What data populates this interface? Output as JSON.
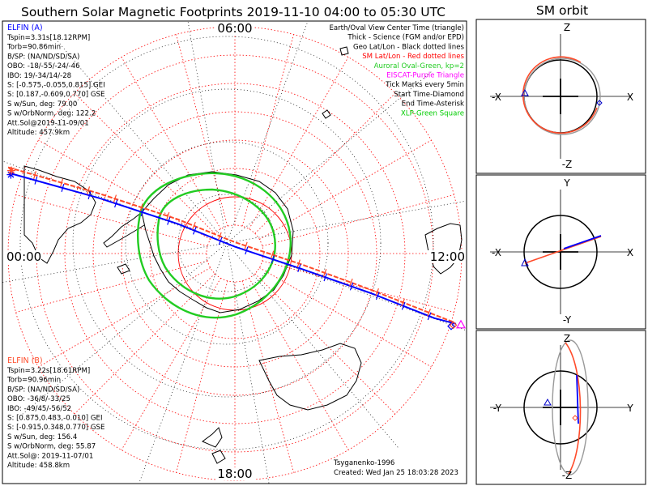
{
  "title": "Southern Solar Magnetic Footprints 2019-11-10 04:00 to 05:30 UTC",
  "orbit_title": "SM orbit",
  "colors": {
    "ela": "#0000ff",
    "elb": "#ff4b2a",
    "oval": "#22cc22",
    "sm_grid": "#ff0000",
    "geo_grid": "#000000",
    "eiscat": "#ff00ff",
    "xlp": "#00cc00",
    "orbit_grey": "#9a9a9a"
  },
  "legend": [
    {
      "text": "Earth/Oval View Center Time (triangle)",
      "color": "#000000"
    },
    {
      "text": "Thick - Science (FGM and/or EPD)",
      "color": "#000000"
    },
    {
      "text": "Geo Lat/Lon - Black dotted lines",
      "color": "#000000"
    },
    {
      "text": "SM Lat/Lon - Red dotted lines",
      "color": "#ff0000"
    },
    {
      "text": "Auroral Oval-Green, kp=2",
      "color": "#22cc22"
    },
    {
      "text": "EISCAT-Purple Triangle",
      "color": "#ff00ff"
    },
    {
      "text": "Tick Marks every 5min",
      "color": "#000000"
    },
    {
      "text": "Start Time-Diamond",
      "color": "#000000"
    },
    {
      "text": "End Time-Asterisk",
      "color": "#000000"
    },
    {
      "text": "XLP-Green Square",
      "color": "#00cc00"
    }
  ],
  "ela_info": {
    "name": "ELFIN (A)",
    "lines": [
      "Tspin=3.31s[18.12RPM]",
      "Torb=90.86min",
      "B/SP: (NA/ND/SD/SA)",
      "OBO: -18/-55/-24/-46",
      "IBO: 19/-34/14/-28",
      "S: [-0.575,-0.055,0.815] GEI",
      "S: [0.187,-0.609,0.770] GSE",
      "S w/Sun, deg: 79.00",
      "S w/OrbNorm, deg: 122.2",
      "Att.Sol@2019-11-09/01",
      "Altitude: 457.9km"
    ]
  },
  "elb_info": {
    "name": "ELFIN (B)",
    "lines": [
      "Tspin=3.22s[18.61RPM]",
      "Torb=90.96min",
      "B/SP: (NA/ND/SD/SA)",
      "OBO: -36/8/-33/25",
      "IBO: -49/45/-56/52",
      "S: [0.875,0.483,-0.010] GEI",
      "S: [-0.915,0.348,0.770] GSE",
      "S w/Sun, deg: 156.4",
      "S w/OrbNorm, deg: 55.87",
      "Att.Sol@: 2019-11-07/01",
      "Altitude: 458.8km"
    ]
  },
  "footer": {
    "author": "Tsyganenko-1996",
    "created": "Created: Wed Jan 25 18:03:28 2023"
  },
  "chart_data": [
    {
      "type": "line",
      "title": "Southern Solar Magnetic Footprints 2019-11-10 04:00 to 05:30 UTC",
      "mlt_labels": {
        "top": "06:00",
        "left": "00:00",
        "right": "12:00",
        "bottom": "18:00"
      },
      "series": [
        {
          "name": "ELFIN (A)",
          "color": "#0000ff",
          "points": [
            [
              -0.995,
              -0.355
            ],
            [
              -0.6,
              -0.245
            ],
            [
              -0.25,
              -0.13
            ],
            [
              0.0,
              -0.03
            ],
            [
              0.3,
              0.07
            ],
            [
              0.6,
              0.175
            ],
            [
              0.88,
              0.285
            ],
            [
              0.975,
              0.31
            ]
          ]
        },
        {
          "name": "ELFIN (B)",
          "color": "#ff4b2a",
          "points": [
            [
              -1.0,
              -0.38
            ],
            [
              -0.6,
              -0.265
            ],
            [
              -0.25,
              -0.15
            ],
            [
              0.0,
              -0.05
            ],
            [
              0.3,
              0.05
            ],
            [
              0.6,
              0.16
            ],
            [
              0.88,
              0.27
            ],
            [
              0.97,
              0.305
            ]
          ]
        }
      ]
    },
    {
      "type": "line",
      "title": "SM orbit",
      "panels": [
        {
          "h_neg": "-X",
          "h_pos": "X",
          "v_pos": "Z",
          "v_neg": "-Z",
          "series": [
            {
              "name": "ELFIN (A)",
              "shape": "circle"
            },
            {
              "name": "ELFIN (B)",
              "shape": "circle"
            }
          ]
        },
        {
          "h_neg": "-X",
          "h_pos": "X",
          "v_pos": "Y",
          "v_neg": "-Y",
          "series": [
            {
              "name": "ELFIN (A)",
              "shape": "line"
            },
            {
              "name": "ELFIN (B)",
              "shape": "line"
            }
          ]
        },
        {
          "h_neg": "-Y",
          "h_pos": "Y",
          "v_pos": "Z",
          "v_neg": "-Z",
          "series": [
            {
              "name": "ELFIN (A)",
              "shape": "ellipse"
            },
            {
              "name": "ELFIN (B)",
              "shape": "ellipse"
            }
          ]
        }
      ]
    }
  ]
}
